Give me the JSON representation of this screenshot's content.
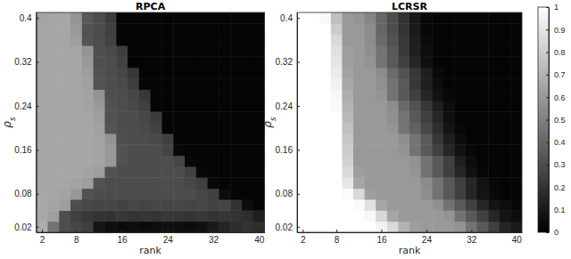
{
  "chart_data": [
    {
      "type": "heatmap",
      "title": "RPCA",
      "x_label": "rank",
      "y_label": "ρs",
      "x": [
        2,
        4,
        6,
        8,
        10,
        12,
        14,
        16,
        18,
        20,
        22,
        24,
        26,
        28,
        30,
        32,
        34,
        36,
        38,
        40
      ],
      "y": [
        0.02,
        0.04,
        0.06,
        0.08,
        0.1,
        0.12,
        0.14,
        0.16,
        0.18,
        0.2,
        0.22,
        0.24,
        0.26,
        0.28,
        0.3,
        0.32,
        0.34,
        0.36,
        0.38,
        0.4
      ],
      "xlim": [
        1,
        41
      ],
      "ylim": [
        0.01,
        0.41
      ],
      "xticks": [
        2,
        8,
        16,
        24,
        32,
        40
      ],
      "yticks": [
        0.02,
        0.08,
        0.16,
        0.24,
        0.32,
        0.4
      ],
      "z": [
        [
          0.68,
          0.45,
          0.3,
          0.28,
          0.25,
          0.08,
          0.05,
          0.04,
          0.05,
          0.04,
          0.05,
          0.06,
          0.05,
          0.04,
          0.06,
          0.1,
          0.15,
          0.18,
          0.2,
          0.18
        ],
        [
          0.66,
          0.62,
          0.3,
          0.25,
          0.22,
          0.2,
          0.2,
          0.22,
          0.2,
          0.21,
          0.2,
          0.22,
          0.21,
          0.2,
          0.22,
          0.2,
          0.21,
          0.2,
          0.18,
          0.12
        ],
        [
          0.66,
          0.64,
          0.62,
          0.3,
          0.28,
          0.27,
          0.28,
          0.26,
          0.28,
          0.27,
          0.28,
          0.27,
          0.28,
          0.27,
          0.28,
          0.26,
          0.27,
          0.2,
          0.05,
          0.02
        ],
        [
          0.66,
          0.65,
          0.64,
          0.6,
          0.32,
          0.3,
          0.3,
          0.3,
          0.3,
          0.3,
          0.3,
          0.3,
          0.3,
          0.3,
          0.28,
          0.25,
          0.05,
          0.02,
          0.02,
          0.02
        ],
        [
          0.65,
          0.65,
          0.65,
          0.64,
          0.62,
          0.32,
          0.3,
          0.3,
          0.3,
          0.3,
          0.3,
          0.3,
          0.3,
          0.28,
          0.25,
          0.03,
          0.02,
          0.02,
          0.02,
          0.02
        ],
        [
          0.65,
          0.65,
          0.65,
          0.65,
          0.64,
          0.62,
          0.32,
          0.3,
          0.3,
          0.3,
          0.3,
          0.3,
          0.3,
          0.26,
          0.03,
          0.02,
          0.02,
          0.02,
          0.02,
          0.02
        ],
        [
          0.65,
          0.65,
          0.65,
          0.65,
          0.65,
          0.64,
          0.6,
          0.32,
          0.3,
          0.3,
          0.3,
          0.3,
          0.27,
          0.03,
          0.02,
          0.02,
          0.02,
          0.02,
          0.02,
          0.02
        ],
        [
          0.65,
          0.65,
          0.65,
          0.65,
          0.65,
          0.64,
          0.6,
          0.32,
          0.3,
          0.3,
          0.3,
          0.27,
          0.03,
          0.02,
          0.02,
          0.02,
          0.02,
          0.02,
          0.02,
          0.02
        ],
        [
          0.65,
          0.65,
          0.65,
          0.65,
          0.65,
          0.64,
          0.58,
          0.31,
          0.3,
          0.3,
          0.29,
          0.25,
          0.02,
          0.02,
          0.02,
          0.02,
          0.02,
          0.02,
          0.02,
          0.02
        ],
        [
          0.65,
          0.65,
          0.65,
          0.65,
          0.65,
          0.63,
          0.33,
          0.3,
          0.3,
          0.29,
          0.26,
          0.02,
          0.02,
          0.02,
          0.02,
          0.02,
          0.02,
          0.02,
          0.02,
          0.02
        ],
        [
          0.65,
          0.65,
          0.65,
          0.65,
          0.65,
          0.62,
          0.32,
          0.3,
          0.3,
          0.28,
          0.24,
          0.02,
          0.02,
          0.02,
          0.02,
          0.02,
          0.02,
          0.02,
          0.02,
          0.02
        ],
        [
          0.65,
          0.65,
          0.65,
          0.65,
          0.64,
          0.6,
          0.32,
          0.3,
          0.29,
          0.25,
          0.02,
          0.02,
          0.02,
          0.02,
          0.02,
          0.02,
          0.02,
          0.02,
          0.02,
          0.02
        ],
        [
          0.65,
          0.65,
          0.65,
          0.65,
          0.64,
          0.58,
          0.31,
          0.3,
          0.28,
          0.22,
          0.02,
          0.02,
          0.02,
          0.02,
          0.02,
          0.02,
          0.02,
          0.02,
          0.02,
          0.02
        ],
        [
          0.65,
          0.65,
          0.65,
          0.65,
          0.63,
          0.32,
          0.3,
          0.29,
          0.24,
          0.02,
          0.02,
          0.02,
          0.02,
          0.02,
          0.02,
          0.02,
          0.02,
          0.02,
          0.02,
          0.02
        ],
        [
          0.65,
          0.65,
          0.65,
          0.65,
          0.62,
          0.32,
          0.3,
          0.28,
          0.22,
          0.02,
          0.02,
          0.02,
          0.02,
          0.02,
          0.02,
          0.02,
          0.02,
          0.02,
          0.02,
          0.02
        ],
        [
          0.65,
          0.65,
          0.65,
          0.65,
          0.6,
          0.31,
          0.3,
          0.26,
          0.02,
          0.02,
          0.02,
          0.02,
          0.02,
          0.02,
          0.02,
          0.02,
          0.02,
          0.02,
          0.02,
          0.02
        ],
        [
          0.65,
          0.65,
          0.65,
          0.65,
          0.58,
          0.31,
          0.29,
          0.24,
          0.02,
          0.02,
          0.02,
          0.02,
          0.02,
          0.02,
          0.02,
          0.02,
          0.02,
          0.02,
          0.02,
          0.02
        ],
        [
          0.65,
          0.65,
          0.65,
          0.62,
          0.33,
          0.3,
          0.26,
          0.02,
          0.02,
          0.02,
          0.02,
          0.02,
          0.02,
          0.02,
          0.02,
          0.02,
          0.02,
          0.02,
          0.02,
          0.02
        ],
        [
          0.65,
          0.65,
          0.65,
          0.6,
          0.32,
          0.3,
          0.25,
          0.02,
          0.02,
          0.02,
          0.02,
          0.02,
          0.02,
          0.02,
          0.02,
          0.02,
          0.02,
          0.02,
          0.02,
          0.02
        ],
        [
          0.64,
          0.65,
          0.65,
          0.58,
          0.35,
          0.3,
          0.24,
          0.02,
          0.02,
          0.02,
          0.02,
          0.02,
          0.02,
          0.02,
          0.02,
          0.02,
          0.02,
          0.02,
          0.02,
          0.02
        ]
      ]
    },
    {
      "type": "heatmap",
      "title": "LCRSR",
      "x_label": "rank",
      "y_label": "ρs",
      "x": [
        2,
        4,
        6,
        8,
        10,
        12,
        14,
        16,
        18,
        20,
        22,
        24,
        26,
        28,
        30,
        32,
        34,
        36,
        38,
        40
      ],
      "y": [
        0.02,
        0.04,
        0.06,
        0.08,
        0.1,
        0.12,
        0.14,
        0.16,
        0.18,
        0.2,
        0.22,
        0.24,
        0.26,
        0.28,
        0.3,
        0.32,
        0.34,
        0.36,
        0.38,
        0.4
      ],
      "xlim": [
        1,
        41
      ],
      "ylim": [
        0.01,
        0.41
      ],
      "xticks": [
        2,
        8,
        16,
        24,
        32,
        40
      ],
      "yticks": [
        0.02,
        0.08,
        0.16,
        0.24,
        0.32,
        0.4
      ],
      "z": [
        [
          1,
          1,
          1,
          1,
          1,
          1,
          1,
          0.95,
          0.85,
          0.7,
          0.62,
          0.6,
          0.6,
          0.6,
          0.58,
          0.45,
          0.35,
          0.25,
          0.15,
          0.1
        ],
        [
          1,
          1,
          1,
          1,
          1,
          1,
          0.97,
          0.85,
          0.65,
          0.6,
          0.6,
          0.6,
          0.6,
          0.58,
          0.45,
          0.35,
          0.25,
          0.15,
          0.08,
          0.05
        ],
        [
          1,
          1,
          1,
          1,
          1,
          0.98,
          0.88,
          0.65,
          0.6,
          0.6,
          0.6,
          0.6,
          0.57,
          0.45,
          0.35,
          0.25,
          0.15,
          0.08,
          0.05,
          0.03
        ],
        [
          1,
          1,
          1,
          1,
          0.98,
          0.85,
          0.62,
          0.6,
          0.6,
          0.6,
          0.6,
          0.56,
          0.45,
          0.35,
          0.25,
          0.15,
          0.08,
          0.04,
          0.02,
          0.02
        ],
        [
          1,
          1,
          1,
          1,
          0.9,
          0.65,
          0.6,
          0.6,
          0.6,
          0.6,
          0.6,
          0.55,
          0.45,
          0.35,
          0.25,
          0.15,
          0.07,
          0.03,
          0.02,
          0.02
        ],
        [
          1,
          1,
          1,
          1,
          0.85,
          0.62,
          0.6,
          0.6,
          0.6,
          0.6,
          0.58,
          0.45,
          0.35,
          0.25,
          0.15,
          0.07,
          0.03,
          0.02,
          0.02,
          0.02
        ],
        [
          1,
          1,
          1,
          1,
          0.82,
          0.6,
          0.6,
          0.6,
          0.6,
          0.6,
          0.57,
          0.45,
          0.35,
          0.25,
          0.12,
          0.05,
          0.02,
          0.02,
          0.02,
          0.02
        ],
        [
          1,
          1,
          1,
          1,
          0.8,
          0.6,
          0.6,
          0.6,
          0.6,
          0.58,
          0.45,
          0.35,
          0.25,
          0.15,
          0.07,
          0.03,
          0.02,
          0.02,
          0.02,
          0.02
        ],
        [
          1,
          1,
          1,
          1,
          0.78,
          0.6,
          0.6,
          0.6,
          0.6,
          0.56,
          0.45,
          0.35,
          0.22,
          0.12,
          0.05,
          0.02,
          0.02,
          0.02,
          0.02,
          0.02
        ],
        [
          1,
          1,
          1,
          1,
          0.75,
          0.6,
          0.6,
          0.6,
          0.58,
          0.45,
          0.38,
          0.28,
          0.18,
          0.08,
          0.03,
          0.02,
          0.02,
          0.02,
          0.02,
          0.02
        ],
        [
          1,
          1,
          1,
          1,
          0.72,
          0.6,
          0.6,
          0.6,
          0.56,
          0.45,
          0.35,
          0.25,
          0.15,
          0.06,
          0.02,
          0.02,
          0.02,
          0.02,
          0.02,
          0.02
        ],
        [
          1,
          1,
          1,
          0.98,
          0.7,
          0.6,
          0.6,
          0.6,
          0.55,
          0.42,
          0.32,
          0.22,
          0.12,
          0.05,
          0.02,
          0.02,
          0.02,
          0.02,
          0.02,
          0.02
        ],
        [
          1,
          1,
          1,
          0.97,
          0.68,
          0.6,
          0.6,
          0.58,
          0.45,
          0.35,
          0.25,
          0.15,
          0.07,
          0.03,
          0.02,
          0.02,
          0.02,
          0.02,
          0.02,
          0.02
        ],
        [
          1,
          1,
          1,
          0.95,
          0.66,
          0.6,
          0.6,
          0.56,
          0.45,
          0.35,
          0.22,
          0.12,
          0.05,
          0.02,
          0.02,
          0.02,
          0.02,
          0.02,
          0.02,
          0.02
        ],
        [
          1,
          1,
          1,
          0.92,
          0.64,
          0.6,
          0.6,
          0.55,
          0.42,
          0.32,
          0.22,
          0.12,
          0.04,
          0.02,
          0.02,
          0.02,
          0.02,
          0.02,
          0.02,
          0.02
        ],
        [
          1,
          1,
          1,
          0.9,
          0.62,
          0.6,
          0.58,
          0.45,
          0.35,
          0.25,
          0.15,
          0.06,
          0.02,
          0.02,
          0.02,
          0.02,
          0.02,
          0.02,
          0.02,
          0.02
        ],
        [
          1,
          1,
          1,
          0.88,
          0.62,
          0.6,
          0.56,
          0.45,
          0.35,
          0.22,
          0.12,
          0.05,
          0.02,
          0.02,
          0.02,
          0.02,
          0.02,
          0.02,
          0.02,
          0.02
        ],
        [
          1,
          1,
          1,
          0.85,
          0.6,
          0.6,
          0.55,
          0.42,
          0.32,
          0.22,
          0.12,
          0.04,
          0.02,
          0.02,
          0.02,
          0.02,
          0.02,
          0.02,
          0.02,
          0.02
        ],
        [
          1,
          1,
          1,
          0.8,
          0.6,
          0.6,
          0.55,
          0.4,
          0.3,
          0.2,
          0.1,
          0.03,
          0.02,
          0.02,
          0.02,
          0.02,
          0.02,
          0.02,
          0.02,
          0.02
        ],
        [
          1,
          1,
          0.98,
          0.75,
          0.6,
          0.58,
          0.52,
          0.4,
          0.3,
          0.2,
          0.1,
          0.03,
          0.02,
          0.02,
          0.02,
          0.02,
          0.02,
          0.02,
          0.02,
          0.02
        ]
      ],
      "colorbar": {
        "range": [
          0,
          1
        ],
        "ticks": [
          0,
          0.1,
          0.2,
          0.3,
          0.4,
          0.5,
          0.6,
          0.7,
          0.8,
          0.9,
          1
        ]
      }
    }
  ]
}
